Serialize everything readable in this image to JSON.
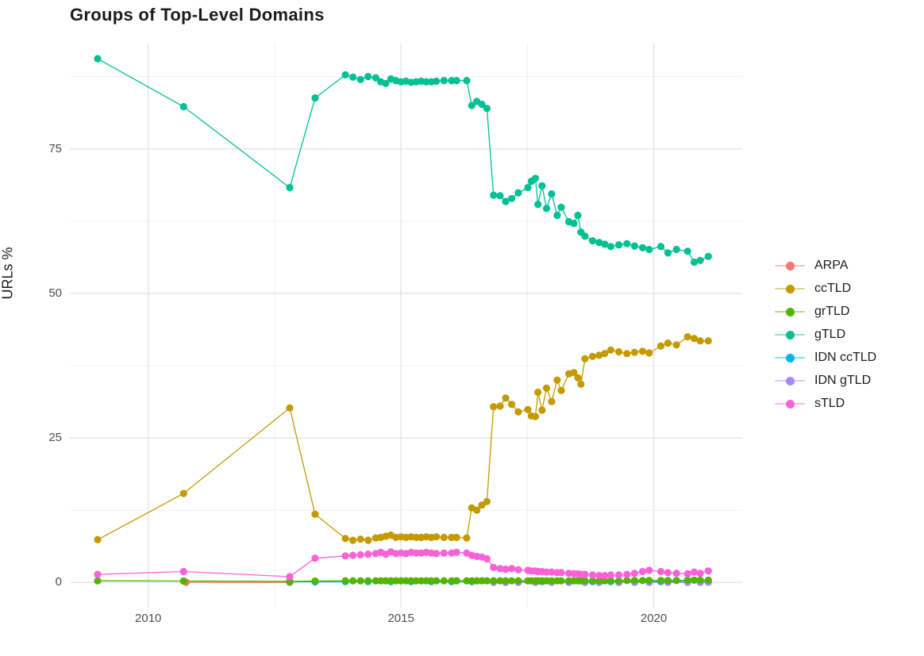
{
  "chart_data": {
    "type": "scatter",
    "title": "Groups of Top-Level Domains",
    "xlabel": "",
    "ylabel": "URLs %",
    "x_ticks": [
      2010,
      2015,
      2020
    ],
    "x_minor_ticks": [
      2012.5,
      2017.5
    ],
    "y_ticks": [
      0,
      25,
      50,
      75
    ],
    "y_minor_ticks": [
      12.5,
      37.5,
      62.5,
      87.5
    ],
    "xlim": [
      2008.45,
      2021.75
    ],
    "ylim": [
      -1.6,
      93.2
    ],
    "grid": "on",
    "legend_position": "right",
    "marker": "point-with-line",
    "draw_order": [
      0,
      4,
      5,
      2,
      1,
      6,
      3
    ],
    "series": [
      {
        "name": "ARPA",
        "color": "#F8766D",
        "points": [
          [
            2010.75,
            0.05
          ],
          [
            2012.8,
            0.02
          ]
        ]
      },
      {
        "name": "ccTLD",
        "color": "#C49A00",
        "points": [
          [
            2009,
            7.4
          ],
          [
            2010.7,
            15.4
          ],
          [
            2012.8,
            30.2
          ],
          [
            2013.3,
            11.8
          ],
          [
            2013.9,
            7.6
          ],
          [
            2014.05,
            7.3
          ],
          [
            2014.2,
            7.5
          ],
          [
            2014.35,
            7.3
          ],
          [
            2014.5,
            7.7
          ],
          [
            2014.6,
            7.8
          ],
          [
            2014.7,
            8.0
          ],
          [
            2014.8,
            8.2
          ],
          [
            2014.9,
            7.8
          ],
          [
            2015,
            7.9
          ],
          [
            2015.1,
            7.8
          ],
          [
            2015.2,
            7.9
          ],
          [
            2015.3,
            7.8
          ],
          [
            2015.4,
            7.8
          ],
          [
            2015.5,
            7.9
          ],
          [
            2015.6,
            7.8
          ],
          [
            2015.7,
            7.9
          ],
          [
            2015.85,
            7.8
          ],
          [
            2016,
            7.8
          ],
          [
            2016.1,
            7.8
          ],
          [
            2016.3,
            7.7
          ],
          [
            2016.4,
            12.9
          ],
          [
            2016.5,
            12.5
          ],
          [
            2016.6,
            13.4
          ],
          [
            2016.7,
            14.0
          ],
          [
            2016.83,
            30.4
          ],
          [
            2016.96,
            30.5
          ],
          [
            2017.07,
            31.9
          ],
          [
            2017.19,
            30.8
          ],
          [
            2017.32,
            29.5
          ],
          [
            2017.51,
            29.9
          ],
          [
            2017.58,
            28.8
          ],
          [
            2017.66,
            28.7
          ],
          [
            2017.71,
            32.9
          ],
          [
            2017.79,
            29.8
          ],
          [
            2017.88,
            33.6
          ],
          [
            2017.98,
            31.3
          ],
          [
            2018.09,
            35.0
          ],
          [
            2018.17,
            33.2
          ],
          [
            2018.32,
            36.1
          ],
          [
            2018.42,
            36.3
          ],
          [
            2018.5,
            35.4
          ],
          [
            2018.56,
            34.3
          ],
          [
            2018.64,
            38.7
          ],
          [
            2018.79,
            39.1
          ],
          [
            2018.92,
            39.3
          ],
          [
            2019.03,
            39.6
          ],
          [
            2019.15,
            40.2
          ],
          [
            2019.31,
            39.9
          ],
          [
            2019.47,
            39.6
          ],
          [
            2019.62,
            39.8
          ],
          [
            2019.78,
            40.0
          ],
          [
            2019.91,
            39.7
          ],
          [
            2020.14,
            40.9
          ],
          [
            2020.28,
            41.4
          ],
          [
            2020.45,
            41.1
          ],
          [
            2020.67,
            42.5
          ],
          [
            2020.8,
            42.2
          ],
          [
            2020.92,
            41.8
          ],
          [
            2021.08,
            41.8
          ]
        ]
      },
      {
        "name": "grTLD",
        "color": "#53B400",
        "points": [
          [
            2009,
            0.3
          ],
          [
            2010.7,
            0.25
          ],
          [
            2012.8,
            0.2
          ],
          [
            2013.3,
            0.25
          ],
          [
            2013.9,
            0.3
          ],
          [
            2014.05,
            0.3
          ],
          [
            2014.2,
            0.3
          ],
          [
            2014.35,
            0.3
          ],
          [
            2014.5,
            0.3
          ],
          [
            2014.6,
            0.3
          ],
          [
            2014.7,
            0.3
          ],
          [
            2014.8,
            0.3
          ],
          [
            2014.9,
            0.3
          ],
          [
            2015,
            0.3
          ],
          [
            2015.1,
            0.3
          ],
          [
            2015.2,
            0.3
          ],
          [
            2015.3,
            0.3
          ],
          [
            2015.4,
            0.3
          ],
          [
            2015.5,
            0.3
          ],
          [
            2015.6,
            0.3
          ],
          [
            2015.7,
            0.3
          ],
          [
            2015.85,
            0.3
          ],
          [
            2016,
            0.3
          ],
          [
            2016.1,
            0.3
          ],
          [
            2016.3,
            0.3
          ],
          [
            2016.4,
            0.3
          ],
          [
            2016.5,
            0.3
          ],
          [
            2016.6,
            0.3
          ],
          [
            2016.7,
            0.3
          ],
          [
            2016.83,
            0.3
          ],
          [
            2016.96,
            0.3
          ],
          [
            2017.07,
            0.3
          ],
          [
            2017.19,
            0.3
          ],
          [
            2017.32,
            0.3
          ],
          [
            2017.51,
            0.3
          ],
          [
            2017.58,
            0.3
          ],
          [
            2017.66,
            0.3
          ],
          [
            2017.71,
            0.3
          ],
          [
            2017.79,
            0.3
          ],
          [
            2017.88,
            0.3
          ],
          [
            2017.98,
            0.3
          ],
          [
            2018.09,
            0.3
          ],
          [
            2018.17,
            0.3
          ],
          [
            2018.32,
            0.3
          ],
          [
            2018.42,
            0.3
          ],
          [
            2018.5,
            0.3
          ],
          [
            2018.56,
            0.3
          ],
          [
            2018.64,
            0.3
          ],
          [
            2018.79,
            0.3
          ],
          [
            2018.92,
            0.3
          ],
          [
            2019.03,
            0.3
          ],
          [
            2019.15,
            0.3
          ],
          [
            2019.31,
            0.3
          ],
          [
            2019.47,
            0.35
          ],
          [
            2019.62,
            0.35
          ],
          [
            2019.78,
            0.35
          ],
          [
            2019.91,
            0.35
          ],
          [
            2020.14,
            0.35
          ],
          [
            2020.28,
            0.35
          ],
          [
            2020.45,
            0.35
          ],
          [
            2020.67,
            0.4
          ],
          [
            2020.8,
            0.4
          ],
          [
            2020.92,
            0.4
          ],
          [
            2021.08,
            0.4
          ]
        ]
      },
      {
        "name": "gTLD",
        "color": "#00C094",
        "points": [
          [
            2009,
            90.6
          ],
          [
            2010.7,
            82.3
          ],
          [
            2012.8,
            68.3
          ],
          [
            2013.3,
            83.8
          ],
          [
            2013.9,
            87.8
          ],
          [
            2014.05,
            87.4
          ],
          [
            2014.2,
            87.0
          ],
          [
            2014.35,
            87.5
          ],
          [
            2014.5,
            87.3
          ],
          [
            2014.6,
            86.6
          ],
          [
            2014.7,
            86.3
          ],
          [
            2014.8,
            87.1
          ],
          [
            2014.9,
            86.8
          ],
          [
            2015,
            86.6
          ],
          [
            2015.1,
            86.7
          ],
          [
            2015.2,
            86.5
          ],
          [
            2015.3,
            86.6
          ],
          [
            2015.4,
            86.7
          ],
          [
            2015.5,
            86.6
          ],
          [
            2015.6,
            86.6
          ],
          [
            2015.7,
            86.7
          ],
          [
            2015.85,
            86.8
          ],
          [
            2016,
            86.8
          ],
          [
            2016.1,
            86.8
          ],
          [
            2016.3,
            86.8
          ],
          [
            2016.4,
            82.5
          ],
          [
            2016.5,
            83.2
          ],
          [
            2016.6,
            82.7
          ],
          [
            2016.7,
            82.0
          ],
          [
            2016.83,
            67.0
          ],
          [
            2016.96,
            66.9
          ],
          [
            2017.07,
            65.9
          ],
          [
            2017.19,
            66.4
          ],
          [
            2017.32,
            67.4
          ],
          [
            2017.51,
            68.3
          ],
          [
            2017.58,
            69.4
          ],
          [
            2017.66,
            69.9
          ],
          [
            2017.71,
            65.4
          ],
          [
            2017.79,
            68.6
          ],
          [
            2017.88,
            64.7
          ],
          [
            2017.98,
            67.2
          ],
          [
            2018.09,
            63.5
          ],
          [
            2018.17,
            64.9
          ],
          [
            2018.32,
            62.4
          ],
          [
            2018.42,
            62.1
          ],
          [
            2018.5,
            63.5
          ],
          [
            2018.56,
            60.6
          ],
          [
            2018.64,
            59.9
          ],
          [
            2018.79,
            59.1
          ],
          [
            2018.92,
            58.8
          ],
          [
            2019.03,
            58.5
          ],
          [
            2019.15,
            58.1
          ],
          [
            2019.31,
            58.4
          ],
          [
            2019.47,
            58.6
          ],
          [
            2019.62,
            58.2
          ],
          [
            2019.78,
            57.9
          ],
          [
            2019.91,
            57.6
          ],
          [
            2020.14,
            58.1
          ],
          [
            2020.28,
            57.0
          ],
          [
            2020.45,
            57.6
          ],
          [
            2020.67,
            57.3
          ],
          [
            2020.8,
            55.4
          ],
          [
            2020.92,
            55.7
          ],
          [
            2021.08,
            56.4
          ]
        ]
      },
      {
        "name": "IDN ccTLD",
        "color": "#00B6EB",
        "points": [
          [
            2012.8,
            0.15
          ],
          [
            2013.3,
            0.12
          ],
          [
            2013.9,
            0.15
          ],
          [
            2014.35,
            0.15
          ],
          [
            2014.8,
            0.15
          ],
          [
            2015.2,
            0.15
          ],
          [
            2015.6,
            0.15
          ],
          [
            2016,
            0.15
          ],
          [
            2016.4,
            0.15
          ],
          [
            2016.83,
            0.15
          ],
          [
            2017.32,
            0.15
          ],
          [
            2017.79,
            0.15
          ],
          [
            2018.32,
            0.15
          ],
          [
            2018.79,
            0.15
          ],
          [
            2019.15,
            0.15
          ],
          [
            2019.62,
            0.15
          ],
          [
            2020.14,
            0.15
          ],
          [
            2020.67,
            0.15
          ],
          [
            2021.08,
            0.15
          ]
        ]
      },
      {
        "name": "IDN gTLD",
        "color": "#A58AFF",
        "points": [
          [
            2016.83,
            0.02
          ],
          [
            2017.07,
            0.02
          ],
          [
            2017.32,
            0.02
          ],
          [
            2017.66,
            0.02
          ],
          [
            2017.98,
            0.02
          ],
          [
            2018.32,
            0.02
          ],
          [
            2018.64,
            0.02
          ],
          [
            2018.92,
            0.02
          ],
          [
            2019.31,
            0.02
          ],
          [
            2019.62,
            0.02
          ],
          [
            2019.91,
            0.02
          ],
          [
            2020.28,
            0.02
          ],
          [
            2020.67,
            0.02
          ],
          [
            2020.92,
            0.02
          ],
          [
            2021.08,
            0.05
          ]
        ]
      },
      {
        "name": "sTLD",
        "color": "#FB61D7",
        "points": [
          [
            2009,
            1.4
          ],
          [
            2010.7,
            1.9
          ],
          [
            2012.8,
            1.0
          ],
          [
            2013.3,
            4.2
          ],
          [
            2013.9,
            4.6
          ],
          [
            2014.05,
            4.7
          ],
          [
            2014.2,
            4.8
          ],
          [
            2014.35,
            4.9
          ],
          [
            2014.5,
            5.0
          ],
          [
            2014.6,
            5.2
          ],
          [
            2014.7,
            4.9
          ],
          [
            2014.8,
            5.3
          ],
          [
            2014.9,
            5.0
          ],
          [
            2015,
            5.1
          ],
          [
            2015.1,
            5.0
          ],
          [
            2015.2,
            5.2
          ],
          [
            2015.3,
            5.1
          ],
          [
            2015.4,
            5.1
          ],
          [
            2015.5,
            5.2
          ],
          [
            2015.6,
            5.1
          ],
          [
            2015.7,
            5.0
          ],
          [
            2015.85,
            5.1
          ],
          [
            2016,
            5.1
          ],
          [
            2016.1,
            5.2
          ],
          [
            2016.3,
            5.1
          ],
          [
            2016.4,
            4.7
          ],
          [
            2016.5,
            4.5
          ],
          [
            2016.6,
            4.4
          ],
          [
            2016.7,
            4.1
          ],
          [
            2016.83,
            2.6
          ],
          [
            2016.96,
            2.4
          ],
          [
            2017.07,
            2.3
          ],
          [
            2017.19,
            2.4
          ],
          [
            2017.32,
            2.2
          ],
          [
            2017.51,
            2.1
          ],
          [
            2017.58,
            2.0
          ],
          [
            2017.66,
            2.0
          ],
          [
            2017.71,
            1.9
          ],
          [
            2017.79,
            1.9
          ],
          [
            2017.88,
            1.8
          ],
          [
            2017.98,
            1.8
          ],
          [
            2018.09,
            1.7
          ],
          [
            2018.17,
            1.7
          ],
          [
            2018.32,
            1.6
          ],
          [
            2018.42,
            1.5
          ],
          [
            2018.5,
            1.5
          ],
          [
            2018.56,
            1.4
          ],
          [
            2018.64,
            1.4
          ],
          [
            2018.79,
            1.3
          ],
          [
            2018.92,
            1.2
          ],
          [
            2019.03,
            1.2
          ],
          [
            2019.15,
            1.3
          ],
          [
            2019.31,
            1.3
          ],
          [
            2019.47,
            1.4
          ],
          [
            2019.62,
            1.6
          ],
          [
            2019.78,
            1.9
          ],
          [
            2019.91,
            2.1
          ],
          [
            2020.14,
            1.9
          ],
          [
            2020.28,
            1.7
          ],
          [
            2020.45,
            1.6
          ],
          [
            2020.67,
            1.5
          ],
          [
            2020.8,
            1.8
          ],
          [
            2020.92,
            1.6
          ],
          [
            2021.08,
            2.0
          ]
        ]
      }
    ]
  }
}
